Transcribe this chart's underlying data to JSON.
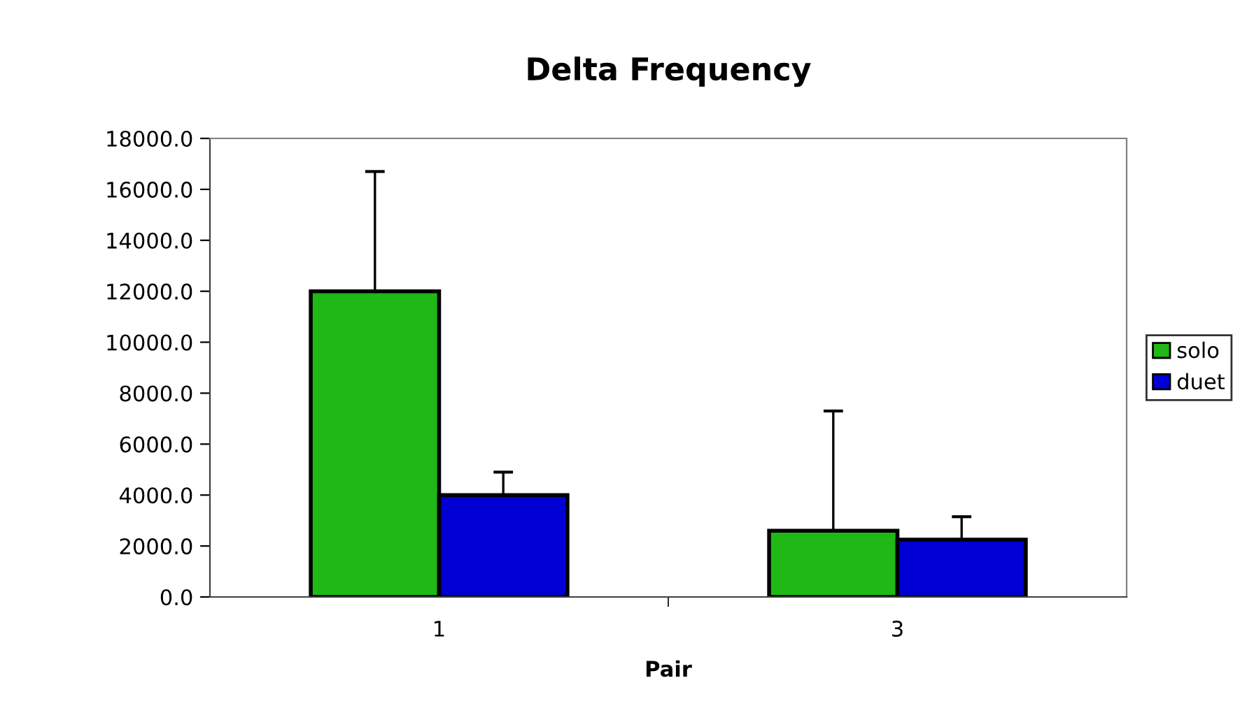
{
  "chart_data": {
    "type": "bar",
    "title": "Delta Frequency",
    "xlabel": "Pair",
    "categories": [
      "1",
      "3"
    ],
    "series": [
      {
        "name": "solo",
        "color": "#1fb817",
        "values": [
          12000,
          2600
        ],
        "errors": [
          [
            12000,
            16700
          ],
          [
            2600,
            7300
          ]
        ]
      },
      {
        "name": "duet",
        "color": "#0000d4",
        "values": [
          4000,
          2250
        ],
        "errors": [
          [
            4000,
            4900
          ],
          [
            2250,
            3150
          ]
        ]
      }
    ],
    "ylim": [
      0,
      18000
    ],
    "yticks": [
      {
        "value": 0,
        "label": "0.0"
      },
      {
        "value": 2000,
        "label": "2000.0"
      },
      {
        "value": 4000,
        "label": "4000.0"
      },
      {
        "value": 6000,
        "label": "6000.0"
      },
      {
        "value": 8000,
        "label": "8000.0"
      },
      {
        "value": 10000,
        "label": "10000.0"
      },
      {
        "value": 12000,
        "label": "12000.0"
      },
      {
        "value": 14000,
        "label": "14000.0"
      },
      {
        "value": 16000,
        "label": "16000.0"
      },
      {
        "value": 18000,
        "label": "18000.0"
      }
    ],
    "grid": false,
    "legend": "right"
  }
}
